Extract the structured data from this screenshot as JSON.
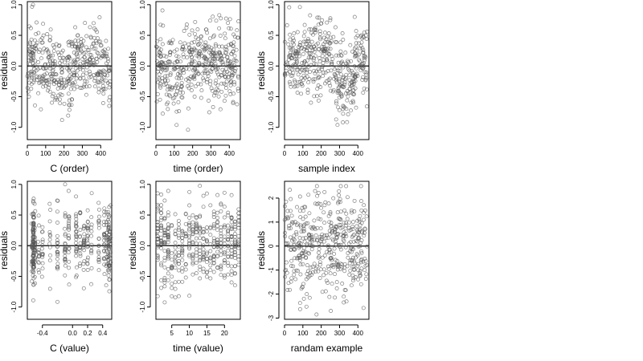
{
  "figure": {
    "background": "#ffffff",
    "point_color": "#555555"
  },
  "chart_data": [
    {
      "type": "scatter",
      "id": "c-order",
      "xlabel": "C (order)",
      "ylabel": "residuals",
      "xlim": [
        0,
        460
      ],
      "ylim": [
        -1.2,
        1.05
      ],
      "xticks": [
        0,
        100,
        200,
        300,
        400
      ],
      "xtick_labels": [
        "0",
        "100",
        "200",
        "300",
        "400"
      ],
      "yticks": [
        -1.0,
        -0.5,
        0.0,
        0.5,
        1.0
      ],
      "ytick_labels": [
        "-1.0",
        "-0.5",
        "0.0",
        "0.5",
        "1.0"
      ],
      "hline": 0,
      "n_points": 450,
      "gen": "c_order"
    },
    {
      "type": "scatter",
      "id": "time-order",
      "xlabel": "time (order)",
      "ylabel": "residuals",
      "xlim": [
        0,
        460
      ],
      "ylim": [
        -1.2,
        1.05
      ],
      "xticks": [
        0,
        100,
        200,
        300,
        400
      ],
      "xtick_labels": [
        "0",
        "100",
        "200",
        "300",
        "400"
      ],
      "yticks": [
        -1.0,
        -0.5,
        0.0,
        0.5,
        1.0
      ],
      "ytick_labels": [
        "-1.0",
        "-0.5",
        "0.0",
        "0.5",
        "1.0"
      ],
      "hline": 0,
      "n_points": 450,
      "gen": "time_order"
    },
    {
      "type": "scatter",
      "id": "sample-index",
      "xlabel": "sample index",
      "ylabel": "residuals",
      "xlim": [
        0,
        460
      ],
      "ylim": [
        -1.2,
        1.05
      ],
      "xticks": [
        0,
        100,
        200,
        300,
        400
      ],
      "xtick_labels": [
        "0",
        "100",
        "200",
        "300",
        "400"
      ],
      "yticks": [
        -1.0,
        -0.5,
        0.0,
        0.5,
        1.0
      ],
      "ytick_labels": [
        "-1.0",
        "-0.5",
        "0.0",
        "0.5",
        "1.0"
      ],
      "hline": 0,
      "n_points": 450,
      "gen": "sample_index"
    },
    {
      "type": "scatter",
      "id": "c-value",
      "xlabel": "C (value)",
      "ylabel": "residuals",
      "xlim": [
        -0.6,
        0.52
      ],
      "ylim": [
        -1.2,
        1.05
      ],
      "xticks": [
        -0.4,
        0.0,
        0.2,
        0.4
      ],
      "xtick_labels": [
        "-0.4",
        "0.0",
        "0.2",
        "0.4"
      ],
      "yticks": [
        -1.0,
        -0.5,
        0.0,
        0.5,
        1.0
      ],
      "ytick_labels": [
        "-1.0",
        "-0.5",
        "0.0",
        "0.5",
        "1.0"
      ],
      "hline": 0,
      "n_points": 450,
      "gen": "c_value"
    },
    {
      "type": "scatter",
      "id": "time-value",
      "xlabel": "time (value)",
      "ylabel": "residuals",
      "xlim": [
        0.5,
        24.5
      ],
      "ylim": [
        -1.2,
        1.05
      ],
      "xticks": [
        5,
        10,
        15,
        20
      ],
      "xtick_labels": [
        "5",
        "10",
        "15",
        "20"
      ],
      "yticks": [
        -1.0,
        -0.5,
        0.0,
        0.5,
        1.0
      ],
      "ytick_labels": [
        "-1.0",
        "-0.5",
        "0.0",
        "0.5",
        "1.0"
      ],
      "hline": 0,
      "n_points": 450,
      "gen": "time_value"
    },
    {
      "type": "scatter",
      "id": "random-example",
      "xlabel": "randam example",
      "ylabel": "residuals",
      "xlim": [
        0,
        460
      ],
      "ylim": [
        -3.05,
        2.7
      ],
      "xticks": [
        0,
        100,
        200,
        300,
        400
      ],
      "xtick_labels": [
        "0",
        "100",
        "200",
        "300",
        "400"
      ],
      "yticks": [
        -3,
        -2,
        -1,
        0,
        1,
        2
      ],
      "ytick_labels": [
        "-3",
        "-2",
        "-1",
        "0",
        "1",
        "2"
      ],
      "hline": 0,
      "n_points": 450,
      "gen": "random"
    }
  ]
}
